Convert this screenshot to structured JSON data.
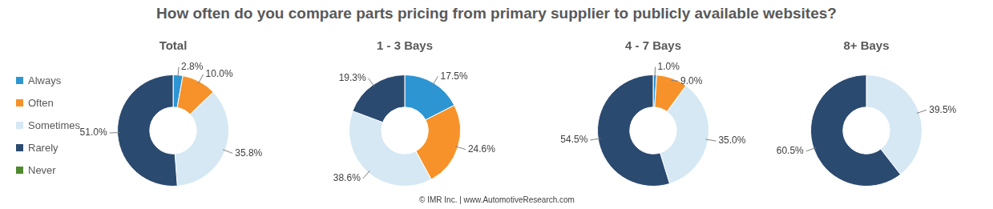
{
  "title": "How often do you compare parts pricing from primary supplier to publicly available websites?",
  "footer": "© IMR Inc. | www.AutomotiveResearch.com",
  "chart_data": [
    {
      "type": "doughnut",
      "title": "Total",
      "categories": [
        "Always",
        "Often",
        "Sometimes",
        "Rarely",
        "Never"
      ],
      "values": [
        2.8,
        10.0,
        35.8,
        51.0,
        0
      ],
      "value_labels": [
        "2.8%",
        "10.0%",
        "35.8%",
        "51.0%",
        null
      ],
      "colors": [
        "#2E95D3",
        "#F7922A",
        "#D5E8F4",
        "#2B4A70",
        "#4F8A2F"
      ],
      "data_labels": true,
      "legend": "left"
    },
    {
      "type": "doughnut",
      "title": "1 - 3 Bays",
      "categories": [
        "Always",
        "Often",
        "Sometimes",
        "Rarely",
        "Never"
      ],
      "values": [
        17.5,
        24.6,
        38.6,
        19.3,
        0
      ],
      "value_labels": [
        "17.5%",
        "24.6%",
        "38.6%",
        "19.3%",
        null
      ],
      "colors": [
        "#2E95D3",
        "#F7922A",
        "#D5E8F4",
        "#2B4A70",
        "#4F8A2F"
      ],
      "data_labels": true
    },
    {
      "type": "doughnut",
      "title": "4 - 7 Bays",
      "categories": [
        "Always",
        "Often",
        "Sometimes",
        "Rarely",
        "Never"
      ],
      "values": [
        1.0,
        9.0,
        35.0,
        54.5,
        0
      ],
      "value_labels": [
        "1.0%",
        "9.0%",
        "35.0%",
        "54.5%",
        null
      ],
      "colors": [
        "#2E95D3",
        "#F7922A",
        "#D5E8F4",
        "#2B4A70",
        "#4F8A2F"
      ],
      "data_labels": true
    },
    {
      "type": "doughnut",
      "title": "8+ Bays",
      "categories": [
        "Always",
        "Often",
        "Sometimes",
        "Rarely",
        "Never"
      ],
      "values": [
        0,
        0,
        39.5,
        60.5,
        0
      ],
      "value_labels": [
        null,
        null,
        "39.5%",
        "60.5%",
        null
      ],
      "colors": [
        "#2E95D3",
        "#F7922A",
        "#D5E8F4",
        "#2B4A70",
        "#4F8A2F"
      ],
      "data_labels": true
    }
  ]
}
